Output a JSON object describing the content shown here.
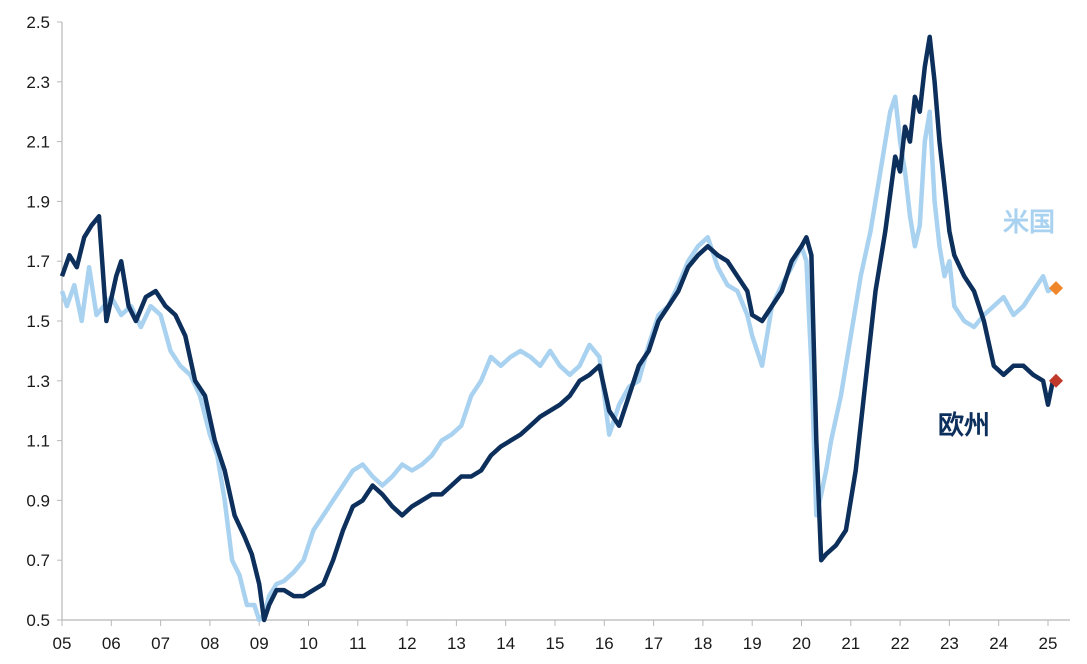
{
  "chart_data": {
    "type": "line",
    "x_ticks": [
      "05",
      "06",
      "07",
      "08",
      "09",
      "10",
      "11",
      "12",
      "13",
      "14",
      "15",
      "16",
      "17",
      "18",
      "19",
      "20",
      "21",
      "22",
      "23",
      "24",
      "25"
    ],
    "y_ticks": [
      "0.5",
      "0.7",
      "0.9",
      "1.1",
      "1.3",
      "1.5",
      "1.7",
      "1.9",
      "2.1",
      "2.3",
      "2.5"
    ],
    "xlim": [
      2005.0,
      2025.5
    ],
    "ylim": [
      0.5,
      2.5
    ],
    "grid": false,
    "series": [
      {
        "name": "米国",
        "color": "#a9d2f0",
        "label_color": "#a9d2f0",
        "marker_color": "#f0862a",
        "last_value": 1.61,
        "x": [
          2005.0,
          2005.1,
          2005.25,
          2005.4,
          2005.55,
          2005.7,
          2005.85,
          2006.0,
          2006.2,
          2006.4,
          2006.6,
          2006.8,
          2007.0,
          2007.2,
          2007.4,
          2007.6,
          2007.8,
          2008.0,
          2008.15,
          2008.3,
          2008.45,
          2008.6,
          2008.75,
          2008.9,
          2009.0,
          2009.1,
          2009.2,
          2009.35,
          2009.5,
          2009.7,
          2009.9,
          2010.1,
          2010.3,
          2010.5,
          2010.7,
          2010.9,
          2011.1,
          2011.3,
          2011.5,
          2011.7,
          2011.9,
          2012.1,
          2012.3,
          2012.5,
          2012.7,
          2012.9,
          2013.1,
          2013.3,
          2013.5,
          2013.7,
          2013.9,
          2014.1,
          2014.3,
          2014.5,
          2014.7,
          2014.9,
          2015.1,
          2015.3,
          2015.5,
          2015.7,
          2015.9,
          2016.1,
          2016.3,
          2016.5,
          2016.7,
          2016.9,
          2017.1,
          2017.3,
          2017.5,
          2017.7,
          2017.9,
          2018.1,
          2018.3,
          2018.5,
          2018.7,
          2018.9,
          2019.0,
          2019.2,
          2019.4,
          2019.6,
          2019.8,
          2020.0,
          2020.1,
          2020.2,
          2020.3,
          2020.4,
          2020.5,
          2020.6,
          2020.8,
          2021.0,
          2021.2,
          2021.4,
          2021.6,
          2021.8,
          2021.9,
          2022.0,
          2022.1,
          2022.2,
          2022.3,
          2022.4,
          2022.5,
          2022.6,
          2022.7,
          2022.8,
          2022.9,
          2023.0,
          2023.1,
          2023.3,
          2023.5,
          2023.7,
          2023.9,
          2024.1,
          2024.3,
          2024.5,
          2024.7,
          2024.9,
          2025.0,
          2025.1
        ],
        "values": [
          1.6,
          1.55,
          1.62,
          1.5,
          1.68,
          1.52,
          1.55,
          1.58,
          1.52,
          1.55,
          1.48,
          1.55,
          1.52,
          1.4,
          1.35,
          1.32,
          1.25,
          1.12,
          1.05,
          0.9,
          0.7,
          0.65,
          0.55,
          0.55,
          0.5,
          0.52,
          0.58,
          0.62,
          0.63,
          0.66,
          0.7,
          0.8,
          0.85,
          0.9,
          0.95,
          1.0,
          1.02,
          0.98,
          0.95,
          0.98,
          1.02,
          1.0,
          1.02,
          1.05,
          1.1,
          1.12,
          1.15,
          1.25,
          1.3,
          1.38,
          1.35,
          1.38,
          1.4,
          1.38,
          1.35,
          1.4,
          1.35,
          1.32,
          1.35,
          1.42,
          1.38,
          1.12,
          1.22,
          1.28,
          1.3,
          1.42,
          1.52,
          1.55,
          1.62,
          1.7,
          1.75,
          1.78,
          1.68,
          1.62,
          1.6,
          1.52,
          1.45,
          1.35,
          1.55,
          1.62,
          1.68,
          1.75,
          1.7,
          1.35,
          0.85,
          0.92,
          1.0,
          1.1,
          1.25,
          1.45,
          1.65,
          1.8,
          2.0,
          2.2,
          2.25,
          2.1,
          2.0,
          1.85,
          1.75,
          1.82,
          2.1,
          2.2,
          1.9,
          1.75,
          1.65,
          1.7,
          1.55,
          1.5,
          1.48,
          1.52,
          1.55,
          1.58,
          1.52,
          1.55,
          1.6,
          1.65,
          1.6,
          1.61
        ]
      },
      {
        "name": "欧州",
        "color": "#0d2f5c",
        "label_color": "#0d2f5c",
        "marker_color": "#c0392b",
        "last_value": 1.3,
        "x": [
          2005.0,
          2005.15,
          2005.3,
          2005.45,
          2005.6,
          2005.75,
          2005.9,
          2006.1,
          2006.2,
          2006.35,
          2006.5,
          2006.7,
          2006.9,
          2007.1,
          2007.3,
          2007.5,
          2007.7,
          2007.9,
          2008.1,
          2008.3,
          2008.5,
          2008.7,
          2008.85,
          2009.0,
          2009.1,
          2009.2,
          2009.35,
          2009.5,
          2009.7,
          2009.9,
          2010.1,
          2010.3,
          2010.5,
          2010.7,
          2010.9,
          2011.1,
          2011.3,
          2011.5,
          2011.7,
          2011.9,
          2012.1,
          2012.3,
          2012.5,
          2012.7,
          2012.9,
          2013.1,
          2013.3,
          2013.5,
          2013.7,
          2013.9,
          2014.1,
          2014.3,
          2014.5,
          2014.7,
          2014.9,
          2015.1,
          2015.3,
          2015.5,
          2015.7,
          2015.9,
          2016.1,
          2016.3,
          2016.5,
          2016.7,
          2016.9,
          2017.1,
          2017.3,
          2017.5,
          2017.7,
          2017.9,
          2018.1,
          2018.3,
          2018.5,
          2018.7,
          2018.9,
          2019.0,
          2019.2,
          2019.4,
          2019.6,
          2019.8,
          2020.0,
          2020.1,
          2020.2,
          2020.3,
          2020.4,
          2020.5,
          2020.7,
          2020.9,
          2021.1,
          2021.3,
          2021.5,
          2021.7,
          2021.9,
          2022.0,
          2022.1,
          2022.2,
          2022.3,
          2022.4,
          2022.5,
          2022.6,
          2022.7,
          2022.8,
          2022.9,
          2023.0,
          2023.1,
          2023.3,
          2023.5,
          2023.7,
          2023.9,
          2024.1,
          2024.3,
          2024.5,
          2024.7,
          2024.9,
          2025.0,
          2025.1
        ],
        "values": [
          1.65,
          1.72,
          1.68,
          1.78,
          1.82,
          1.85,
          1.5,
          1.65,
          1.7,
          1.55,
          1.5,
          1.58,
          1.6,
          1.55,
          1.52,
          1.45,
          1.3,
          1.25,
          1.1,
          1.0,
          0.85,
          0.78,
          0.72,
          0.62,
          0.5,
          0.55,
          0.6,
          0.6,
          0.58,
          0.58,
          0.6,
          0.62,
          0.7,
          0.8,
          0.88,
          0.9,
          0.95,
          0.92,
          0.88,
          0.85,
          0.88,
          0.9,
          0.92,
          0.92,
          0.95,
          0.98,
          0.98,
          1.0,
          1.05,
          1.08,
          1.1,
          1.12,
          1.15,
          1.18,
          1.2,
          1.22,
          1.25,
          1.3,
          1.32,
          1.35,
          1.2,
          1.15,
          1.25,
          1.35,
          1.4,
          1.5,
          1.55,
          1.6,
          1.68,
          1.72,
          1.75,
          1.72,
          1.7,
          1.65,
          1.6,
          1.52,
          1.5,
          1.55,
          1.6,
          1.7,
          1.75,
          1.78,
          1.72,
          1.1,
          0.7,
          0.72,
          0.75,
          0.8,
          1.0,
          1.3,
          1.6,
          1.8,
          2.05,
          2.0,
          2.15,
          2.1,
          2.25,
          2.2,
          2.35,
          2.45,
          2.3,
          2.1,
          1.95,
          1.8,
          1.72,
          1.65,
          1.6,
          1.5,
          1.35,
          1.32,
          1.35,
          1.35,
          1.32,
          1.3,
          1.22,
          1.3
        ]
      }
    ]
  }
}
